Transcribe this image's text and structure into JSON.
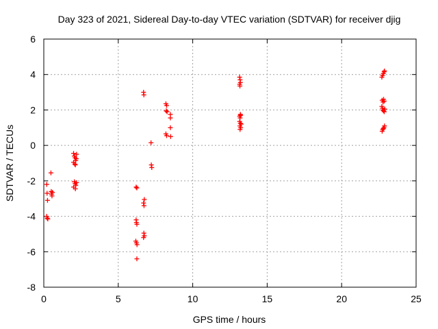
{
  "chart_data": {
    "type": "scatter",
    "title": "Day 323 of 2021, Sidereal Day-to-day VTEC variation (SDTVAR) for receiver djig",
    "xlabel": "GPS time / hours",
    "ylabel": "SDTVAR / TECUs",
    "xlim": [
      0,
      25
    ],
    "ylim": [
      -8,
      6
    ],
    "x_ticks": [
      0,
      5,
      10,
      15,
      20,
      25
    ],
    "y_ticks": [
      -8,
      -6,
      -4,
      -2,
      0,
      2,
      4,
      6
    ],
    "x_tick_labels": [
      "0",
      "5",
      "10",
      "15",
      "20",
      "25"
    ],
    "y_tick_labels": [
      "-8",
      "-6",
      "-4",
      "-2",
      "0",
      "2",
      "4",
      "6"
    ],
    "grid": true,
    "marker": "+",
    "marker_color": "#ff0000",
    "points": [
      {
        "x": 0.2,
        "y": -2.2
      },
      {
        "x": 0.22,
        "y": -2.7
      },
      {
        "x": 0.25,
        "y": -3.1
      },
      {
        "x": 0.2,
        "y": -4.0
      },
      {
        "x": 0.23,
        "y": -4.1
      },
      {
        "x": 0.27,
        "y": -4.15
      },
      {
        "x": 0.48,
        "y": -1.55
      },
      {
        "x": 0.5,
        "y": -2.6
      },
      {
        "x": 0.52,
        "y": -2.75
      },
      {
        "x": 0.55,
        "y": -2.85
      },
      {
        "x": 0.58,
        "y": -2.65
      },
      {
        "x": 2.0,
        "y": -0.45
      },
      {
        "x": 2.05,
        "y": -0.6
      },
      {
        "x": 2.1,
        "y": -0.7
      },
      {
        "x": 2.15,
        "y": -0.85
      },
      {
        "x": 2.0,
        "y": -0.95
      },
      {
        "x": 2.08,
        "y": -1.05
      },
      {
        "x": 2.12,
        "y": -1.1
      },
      {
        "x": 2.2,
        "y": -0.5
      },
      {
        "x": 2.18,
        "y": -0.75
      },
      {
        "x": 2.05,
        "y": -2.05
      },
      {
        "x": 2.1,
        "y": -2.15
      },
      {
        "x": 2.15,
        "y": -2.25
      },
      {
        "x": 2.0,
        "y": -2.35
      },
      {
        "x": 2.12,
        "y": -2.45
      },
      {
        "x": 2.2,
        "y": -2.1
      },
      {
        "x": 6.2,
        "y": -2.35
      },
      {
        "x": 6.25,
        "y": -2.4
      },
      {
        "x": 6.2,
        "y": -4.2
      },
      {
        "x": 6.22,
        "y": -4.35
      },
      {
        "x": 6.25,
        "y": -4.45
      },
      {
        "x": 6.18,
        "y": -5.4
      },
      {
        "x": 6.22,
        "y": -5.5
      },
      {
        "x": 6.26,
        "y": -5.6
      },
      {
        "x": 6.25,
        "y": -6.4
      },
      {
        "x": 6.7,
        "y": 3.0
      },
      {
        "x": 6.72,
        "y": 2.85
      },
      {
        "x": 6.75,
        "y": -3.05
      },
      {
        "x": 6.7,
        "y": -3.25
      },
      {
        "x": 6.73,
        "y": -3.4
      },
      {
        "x": 6.72,
        "y": -4.95
      },
      {
        "x": 6.75,
        "y": -5.1
      },
      {
        "x": 6.7,
        "y": -5.2
      },
      {
        "x": 7.2,
        "y": 0.15
      },
      {
        "x": 7.22,
        "y": -1.1
      },
      {
        "x": 7.25,
        "y": -1.25
      },
      {
        "x": 8.2,
        "y": 2.35
      },
      {
        "x": 8.25,
        "y": 2.25
      },
      {
        "x": 8.22,
        "y": 1.95
      },
      {
        "x": 8.28,
        "y": 1.9
      },
      {
        "x": 8.2,
        "y": 0.65
      },
      {
        "x": 8.25,
        "y": 0.55
      },
      {
        "x": 8.5,
        "y": 1.75
      },
      {
        "x": 8.5,
        "y": 1.55
      },
      {
        "x": 8.5,
        "y": 1.0
      },
      {
        "x": 8.52,
        "y": 0.5
      },
      {
        "x": 13.15,
        "y": 3.85
      },
      {
        "x": 13.18,
        "y": 3.7
      },
      {
        "x": 13.2,
        "y": 3.55
      },
      {
        "x": 13.15,
        "y": 3.45
      },
      {
        "x": 13.17,
        "y": 3.35
      },
      {
        "x": 13.2,
        "y": 1.75
      },
      {
        "x": 13.15,
        "y": 1.65
      },
      {
        "x": 13.18,
        "y": 1.55
      },
      {
        "x": 13.22,
        "y": 1.7
      },
      {
        "x": 13.15,
        "y": 1.35
      },
      {
        "x": 13.2,
        "y": 1.25
      },
      {
        "x": 13.17,
        "y": 1.1
      },
      {
        "x": 13.22,
        "y": 1.0
      },
      {
        "x": 13.18,
        "y": 0.9
      },
      {
        "x": 13.25,
        "y": 1.2
      },
      {
        "x": 22.7,
        "y": 3.85
      },
      {
        "x": 22.75,
        "y": 3.95
      },
      {
        "x": 22.8,
        "y": 4.05
      },
      {
        "x": 22.85,
        "y": 4.15
      },
      {
        "x": 22.88,
        "y": 4.2
      },
      {
        "x": 22.72,
        "y": 2.55
      },
      {
        "x": 22.78,
        "y": 2.45
      },
      {
        "x": 22.82,
        "y": 2.6
      },
      {
        "x": 22.86,
        "y": 2.5
      },
      {
        "x": 22.7,
        "y": 2.2
      },
      {
        "x": 22.74,
        "y": 2.1
      },
      {
        "x": 22.78,
        "y": 2.0
      },
      {
        "x": 22.82,
        "y": 1.95
      },
      {
        "x": 22.86,
        "y": 1.9
      },
      {
        "x": 22.9,
        "y": 2.05
      },
      {
        "x": 22.72,
        "y": 0.8
      },
      {
        "x": 22.76,
        "y": 0.9
      },
      {
        "x": 22.8,
        "y": 0.95
      },
      {
        "x": 22.84,
        "y": 1.0
      },
      {
        "x": 22.88,
        "y": 1.1
      }
    ]
  }
}
